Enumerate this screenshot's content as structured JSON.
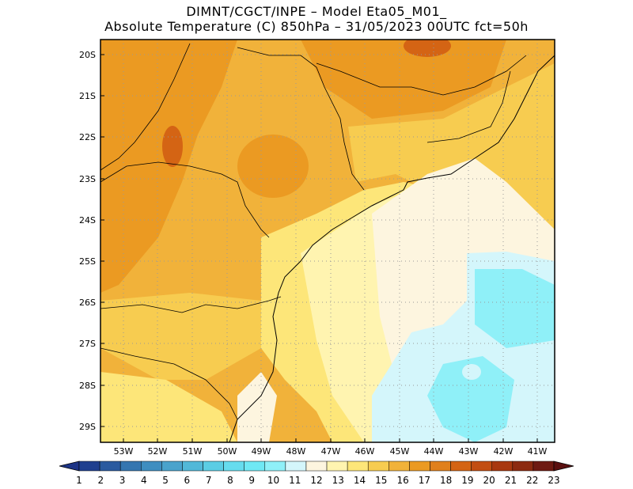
{
  "header": {
    "line1": "DIMNT/CGCT/INPE –  Model Eta05_M01_",
    "line2": "Absolute Temperature (C) 850hPa –  31/05/2023 00UTC fct=50h"
  },
  "axes": {
    "lat_labels": [
      "20S",
      "21S",
      "22S",
      "23S",
      "24S",
      "25S",
      "26S",
      "27S",
      "28S",
      "29S"
    ],
    "lon_labels": [
      "53W",
      "52W",
      "51W",
      "50W",
      "49W",
      "48W",
      "47W",
      "46W",
      "45W",
      "44W",
      "43W",
      "42W",
      "41W"
    ]
  },
  "colorbar": {
    "labels": [
      "1",
      "2",
      "3",
      "4",
      "5",
      "6",
      "7",
      "8",
      "9",
      "10",
      "11",
      "12",
      "13",
      "14",
      "15",
      "16",
      "17",
      "18",
      "19",
      "20",
      "21",
      "22",
      "23"
    ],
    "colors": [
      "#1f3f8f",
      "#2a5a9f",
      "#3576b0",
      "#3f8ec0",
      "#4aa3cc",
      "#52b8d8",
      "#5bcde4",
      "#66dcee",
      "#6fe8f4",
      "#8ff0f8",
      "#d4f6fb",
      "#fdf5df",
      "#fff4b0",
      "#fde679",
      "#f7cc50",
      "#f1b23a",
      "#eb9a22",
      "#e0801c",
      "#d46414",
      "#c24e12",
      "#a8380f",
      "#8c2a10",
      "#6e1a12"
    ],
    "end_low": "#1d3486",
    "end_high": "#5a1010"
  },
  "chart_data": {
    "type": "heatmap",
    "variable": "Absolute Temperature (C)",
    "level": "850hPa",
    "lat_range": [
      "29.4S",
      "19.9S"
    ],
    "lon_range": [
      "53.6W",
      "40.5W"
    ],
    "value_range": [
      1,
      23
    ],
    "regions": [
      {
        "area": "northwest interior",
        "approx_value": 17
      },
      {
        "area": "hot core near 52W 22S",
        "approx_value": 19
      },
      {
        "area": "north-central 44-45W 20S",
        "approx_value": 18
      },
      {
        "area": "central interior",
        "approx_value": 16
      },
      {
        "area": "south interior",
        "approx_value": 15
      },
      {
        "area": "coastal band",
        "approx_value": 13
      },
      {
        "area": "offshore near coast",
        "approx_value": 12
      },
      {
        "area": "southeast ocean",
        "approx_value": 10
      }
    ]
  }
}
